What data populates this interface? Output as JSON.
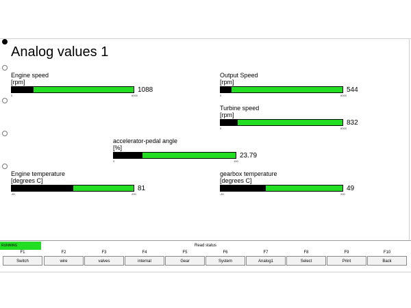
{
  "screen": {
    "title": "Analog values 1"
  },
  "gauges": {
    "engine_speed": {
      "label": "Engine speed",
      "unit": "[rpm]",
      "value": "1088",
      "min": "0",
      "max": "6000",
      "fill_fraction": 0.18
    },
    "output_speed": {
      "label": "Output Speed",
      "unit": "[rpm]",
      "value": "544",
      "min": "0",
      "max": "6000",
      "fill_fraction": 0.09
    },
    "turbine_speed": {
      "label": "Turbine speed",
      "unit": "[rpm]",
      "value": "832",
      "min": "0",
      "max": "6000",
      "fill_fraction": 0.14
    },
    "accelerator_pedal_angle": {
      "label": "accelerator-pedal angle",
      "unit": "[%]",
      "value": "23.79",
      "min": "0",
      "max": "100",
      "fill_fraction": 0.2379
    },
    "engine_temperature": {
      "label": "Engine temperature",
      "unit": "[degrees C]",
      "value": "81",
      "min": "-40",
      "max": "200",
      "fill_fraction": 0.504
    },
    "gearbox_temperature": {
      "label": "gearbox temperature",
      "unit": "[degrees C]",
      "value": "49",
      "min": "-40",
      "max": "200",
      "fill_fraction": 0.371
    }
  },
  "status": {
    "state": "RUNNING",
    "read_status": "Read status"
  },
  "function_keys": [
    {
      "key": "F1",
      "label": "Switch"
    },
    {
      "key": "F2",
      "label": "wire"
    },
    {
      "key": "F3",
      "label": "valves"
    },
    {
      "key": "F4",
      "label": "internal"
    },
    {
      "key": "F5",
      "label": "Gear"
    },
    {
      "key": "F6",
      "label": "System"
    },
    {
      "key": "F7",
      "label": "Analog1"
    },
    {
      "key": "F8",
      "label": "Select"
    },
    {
      "key": "F9",
      "label": "Print"
    },
    {
      "key": "F10",
      "label": "Back"
    }
  ],
  "colors": {
    "bar_green": "#22dd22",
    "bar_fill": "#000000",
    "running_green": "#22dd22"
  }
}
